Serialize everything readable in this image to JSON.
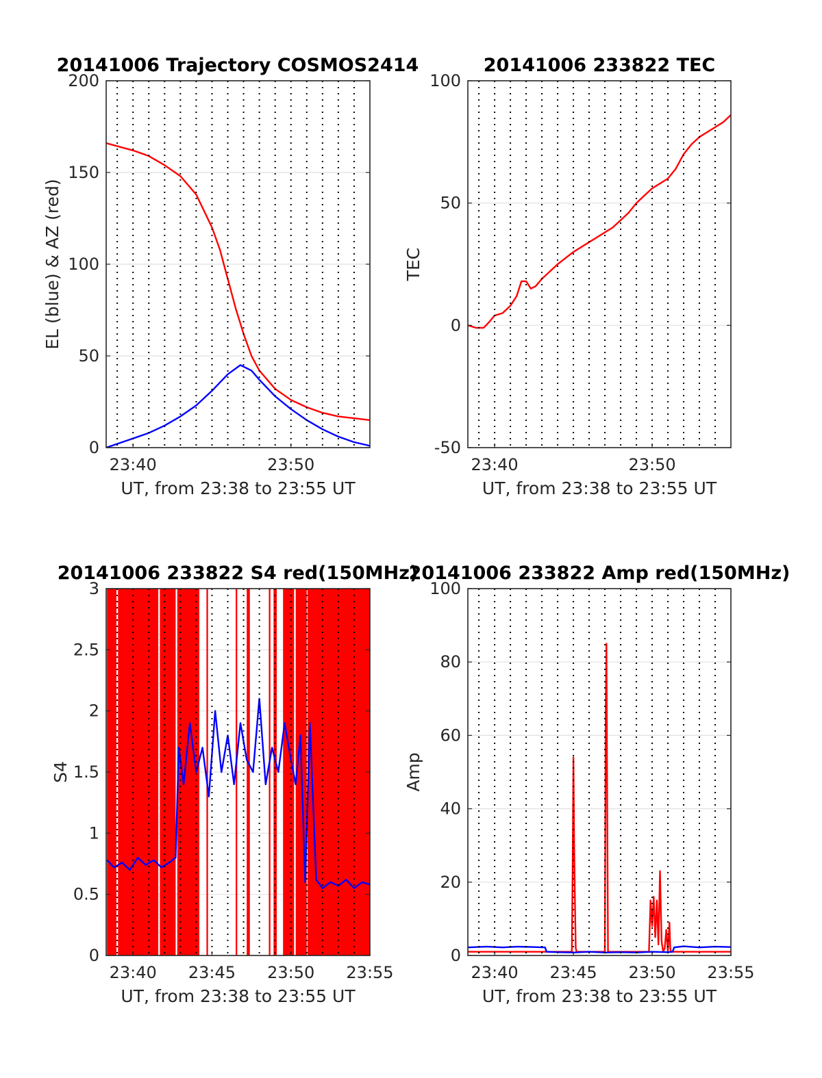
{
  "chart_data": [
    {
      "id": "trajectory",
      "type": "line",
      "title": "20141006 Trajectory COSMOS2414",
      "xlabel": "UT, from 23:38 to 23:55 UT",
      "ylabel": "EL (blue) & AZ (red)",
      "xlim": [
        38.3,
        55
      ],
      "ylim": [
        0,
        200
      ],
      "yticks": [
        0,
        50,
        100,
        150,
        200
      ],
      "ytick_labels": [
        "0",
        "50",
        "100",
        "150",
        "200"
      ],
      "xticks": [
        40,
        50
      ],
      "xtick_labels": [
        "23:40",
        "23:50"
      ],
      "dotted_vertical_lines": [
        39,
        40,
        41,
        42,
        43,
        44,
        45,
        46,
        47,
        48,
        49,
        50,
        51,
        52,
        53,
        54
      ],
      "grid": "horizontal",
      "series": [
        {
          "color": "#ff0000",
          "x": [
            38.3,
            40,
            41,
            42,
            43,
            44,
            45,
            45.5,
            46,
            46.5,
            47,
            47.5,
            48,
            49,
            50,
            51,
            52,
            53,
            54,
            55
          ],
          "y": [
            166,
            162,
            159,
            154,
            148,
            138,
            120,
            108,
            92,
            76,
            62,
            50,
            42,
            32,
            26,
            22,
            19,
            17,
            16,
            15
          ]
        },
        {
          "color": "#0000ff",
          "x": [
            38.3,
            40,
            41,
            42,
            43,
            44,
            45,
            46,
            46.8,
            47.5,
            48,
            49,
            50,
            51,
            52,
            53,
            54,
            55
          ],
          "y": [
            0,
            5,
            8,
            12,
            17,
            23,
            31,
            40,
            45,
            42,
            37,
            28,
            21,
            15,
            10,
            6,
            3,
            1
          ]
        }
      ]
    },
    {
      "id": "tec",
      "type": "line",
      "title": "20141006 233822 TEC",
      "xlabel": "UT, from 23:38 to 23:55 UT",
      "ylabel": "TEC",
      "xlim": [
        38.3,
        55
      ],
      "ylim": [
        -50,
        100
      ],
      "yticks": [
        -50,
        0,
        50,
        100
      ],
      "ytick_labels": [
        "-50",
        "0",
        "50",
        "100"
      ],
      "xticks": [
        40,
        50
      ],
      "xtick_labels": [
        "23:40",
        "23:50"
      ],
      "dotted_vertical_lines": [
        39,
        40,
        41,
        42,
        43,
        44,
        45,
        46,
        47,
        48,
        49,
        50,
        51,
        52,
        53,
        54
      ],
      "grid": "horizontal",
      "series": [
        {
          "color": "#ff0000",
          "x": [
            38.3,
            38.8,
            39.3,
            39.6,
            40,
            40.5,
            41,
            41.4,
            41.7,
            42,
            42.3,
            42.6,
            43,
            44,
            45,
            46,
            47,
            47.5,
            48,
            48.5,
            49,
            49.5,
            50,
            50.5,
            51,
            51.5,
            52,
            52.5,
            53,
            53.5,
            54,
            54.5,
            55
          ],
          "y": [
            0,
            -1,
            -1,
            1,
            4,
            5,
            8,
            12,
            18,
            18,
            15,
            16,
            19,
            25,
            30,
            34,
            38,
            40,
            43,
            46,
            50,
            53,
            56,
            58,
            60,
            64,
            70,
            74,
            77,
            79,
            81,
            83,
            86
          ]
        }
      ]
    },
    {
      "id": "s4",
      "type": "line",
      "title": "20141006 233822 S4 red(150MHz)",
      "xlabel": "UT, from 23:38 to 23:55 UT",
      "ylabel": "S4",
      "xlim": [
        38.3,
        55
      ],
      "ylim": [
        0,
        3
      ],
      "yticks": [
        0,
        0.5,
        1,
        1.5,
        2,
        2.5,
        3
      ],
      "ytick_labels": [
        "0",
        "0.5",
        "1",
        "1.5",
        "2",
        "2.5",
        "3"
      ],
      "xticks": [
        40,
        45,
        50,
        55
      ],
      "xtick_labels": [
        "23:40",
        "23:45",
        "23:50",
        "23:55"
      ],
      "dotted_vertical_lines": [
        39,
        40,
        41,
        42,
        43,
        44,
        45,
        46,
        47,
        48,
        49,
        50,
        51,
        52,
        53,
        54
      ],
      "grid": "horizontal",
      "red_filled_bands": [
        [
          38.35,
          38.95
        ],
        [
          39.05,
          41.6
        ],
        [
          41.7,
          42.7
        ],
        [
          42.8,
          44.2
        ],
        [
          44.65,
          44.75
        ],
        [
          46.5,
          46.6
        ],
        [
          47.2,
          47.4
        ],
        [
          48.6,
          48.7
        ],
        [
          48.9,
          49.1
        ],
        [
          49.5,
          50.2
        ],
        [
          50.3,
          51.0
        ],
        [
          51.05,
          55
        ]
      ],
      "series": [
        {
          "color": "#0000ff",
          "x": [
            38.35,
            38.8,
            39.3,
            39.8,
            40.3,
            40.8,
            41.3,
            41.8,
            42.3,
            42.7,
            42.9,
            43.2,
            43.6,
            44,
            44.4,
            44.8,
            45.2,
            45.6,
            46,
            46.4,
            46.8,
            47.2,
            47.6,
            48,
            48.4,
            48.8,
            49.2,
            49.6,
            50,
            50.3,
            50.6,
            50.9,
            51.2,
            51.6,
            52,
            52.5,
            53,
            53.5,
            54,
            54.5,
            55
          ],
          "y": [
            0.78,
            0.72,
            0.76,
            0.7,
            0.8,
            0.74,
            0.78,
            0.72,
            0.76,
            0.8,
            1.7,
            1.4,
            1.9,
            1.5,
            1.7,
            1.3,
            2.0,
            1.5,
            1.8,
            1.4,
            1.9,
            1.6,
            1.5,
            2.1,
            1.4,
            1.7,
            1.5,
            1.9,
            1.6,
            1.4,
            1.8,
            0.6,
            1.9,
            0.62,
            0.55,
            0.6,
            0.57,
            0.62,
            0.55,
            0.6,
            0.58
          ]
        }
      ]
    },
    {
      "id": "amp",
      "type": "line",
      "title": "20141006 233822 Amp red(150MHz)",
      "xlabel": "UT, from 23:38 to 23:55 UT",
      "ylabel": "Amp",
      "xlim": [
        38.3,
        55
      ],
      "ylim": [
        0,
        100
      ],
      "yticks": [
        0,
        20,
        40,
        60,
        80,
        100
      ],
      "ytick_labels": [
        "0",
        "20",
        "40",
        "60",
        "80",
        "100"
      ],
      "xticks": [
        40,
        45,
        50,
        55
      ],
      "xtick_labels": [
        "23:40",
        "23:45",
        "23:50",
        "23:55"
      ],
      "dotted_vertical_lines": [
        39,
        40,
        41,
        42,
        43,
        44,
        45,
        46,
        47,
        48,
        49,
        50,
        51,
        52,
        53,
        54
      ],
      "grid": "horizontal",
      "series": [
        {
          "color": "#ff0000",
          "x": [
            38.3,
            44.9,
            44.95,
            45.0,
            45.05,
            45.1,
            45.15,
            45.2,
            45.25,
            47.0,
            47.05,
            47.1,
            47.15,
            47.2,
            49.8,
            49.9,
            50.0,
            50.1,
            50.2,
            50.3,
            50.4,
            50.5,
            50.6,
            50.7,
            50.8,
            50.9,
            51.0,
            51.1,
            51.15,
            51.2,
            51.3,
            55
          ],
          "y": [
            1,
            1,
            22,
            54,
            30,
            14,
            2,
            1,
            1,
            1,
            65,
            85,
            40,
            1,
            1,
            15,
            8,
            16,
            5,
            15,
            3,
            23,
            4,
            1,
            2,
            7,
            1,
            9,
            2,
            1,
            1,
            1
          ]
        },
        {
          "color": "#0000ff",
          "x": [
            38.3,
            39.5,
            40.5,
            41.5,
            42.5,
            43.2,
            43.3,
            44,
            45,
            46,
            47,
            48,
            49,
            50,
            51,
            51.3,
            51.4,
            52,
            53,
            54,
            55
          ],
          "y": [
            2.2,
            2.4,
            2.2,
            2.4,
            2.3,
            2.2,
            1.0,
            0.9,
            0.8,
            1.0,
            0.8,
            0.9,
            0.8,
            1.0,
            0.9,
            1.0,
            2.2,
            2.5,
            2.2,
            2.4,
            2.3
          ]
        }
      ]
    }
  ]
}
